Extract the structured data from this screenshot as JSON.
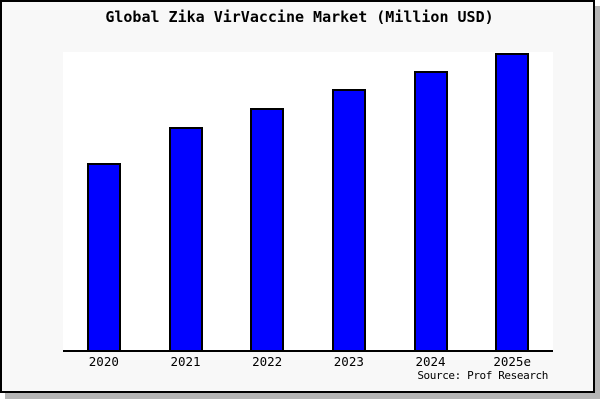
{
  "title": "Global Zika VirVaccine Market (Million USD)",
  "source": "Source: Prof Research",
  "colors": {
    "page_bg": "#f8f8f8",
    "plot_bg": "#ffffff",
    "bar_fill": "#0000ff",
    "bar_border": "#000000",
    "frame_border": "#000000",
    "axis_line": "#000000",
    "text": "#000000"
  },
  "chart_data": {
    "type": "bar",
    "title": "Global Zika VirVaccine Market (Million USD)",
    "categories": [
      "2020",
      "2021",
      "2022",
      "2023",
      "2024",
      "2025e"
    ],
    "values": [
      187,
      223,
      242,
      261,
      279,
      297
    ],
    "values_note": "no y-axis, gridlines or data labels are shown; values are relative bar heights estimated in pixels",
    "xlabel": "",
    "ylabel": "",
    "ylim": [
      0,
      298
    ],
    "grid": false,
    "legend": "none",
    "bar_color": "#0000ff",
    "annotation": "Source: Prof Research"
  }
}
